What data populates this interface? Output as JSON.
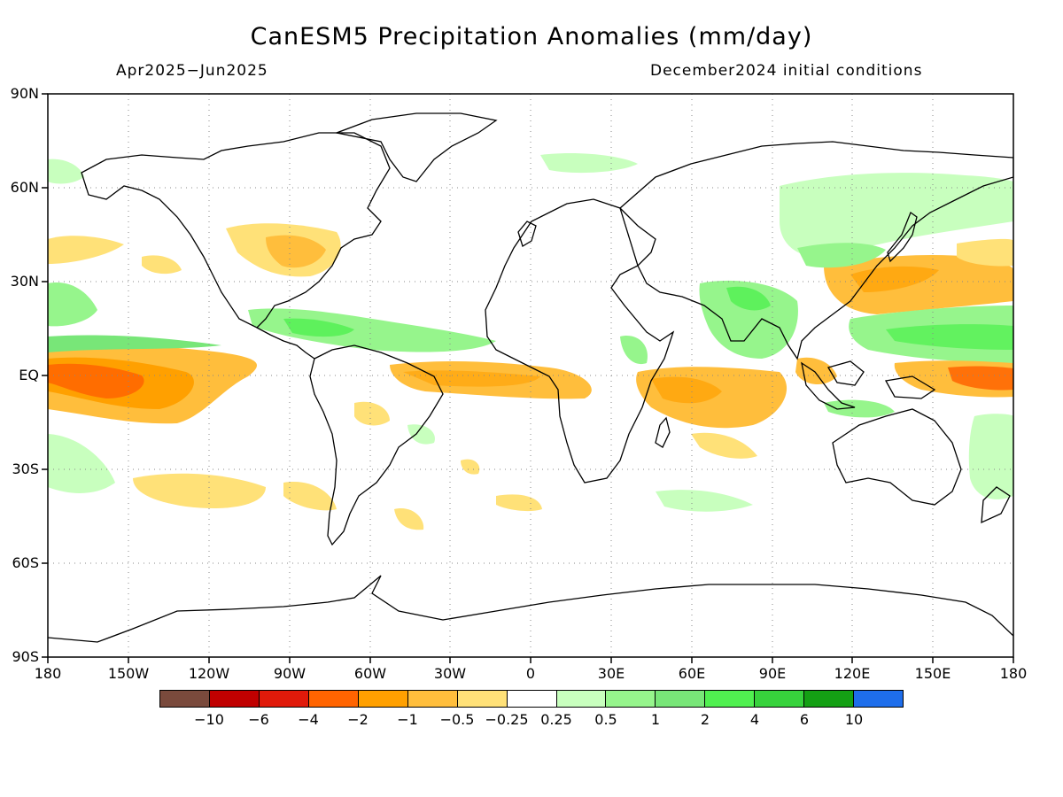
{
  "title": "CanESM5 Precipitation Anomalies (mm/day)",
  "period": "Apr2025−Jun2025",
  "initial_conditions": "December2024 initial conditions",
  "lat_labels": [
    "90N",
    "60N",
    "30N",
    "EQ",
    "30S",
    "60S",
    "90S"
  ],
  "lon_labels": [
    "180",
    "150W",
    "120W",
    "90W",
    "60W",
    "30W",
    "0",
    "30E",
    "60E",
    "90E",
    "120E",
    "150E",
    "180"
  ],
  "colorbar": {
    "colors": [
      "#7a4a3c",
      "#c00000",
      "#e01a0a",
      "#ff6400",
      "#ffa000",
      "#ffbe3c",
      "#ffe178",
      "#ffffff",
      "#c8ffbe",
      "#96f58c",
      "#78e678",
      "#50f050",
      "#37d23c",
      "#14a014",
      "#1e6eeb"
    ],
    "labels": [
      "−10",
      "−6",
      "−4",
      "−2",
      "−1",
      "−0.5",
      "−0.25",
      "0.25",
      "0.5",
      "1",
      "2",
      "4",
      "6",
      "10"
    ]
  },
  "map": {
    "lon_range": [
      -180,
      180
    ],
    "lat_range": [
      -90,
      90
    ],
    "gridlines": "dotted",
    "grid_lons": [
      -150,
      -120,
      -90,
      -60,
      -30,
      0,
      30,
      60,
      90,
      120,
      150
    ],
    "grid_lats": [
      -60,
      -30,
      0,
      30,
      60
    ]
  }
}
